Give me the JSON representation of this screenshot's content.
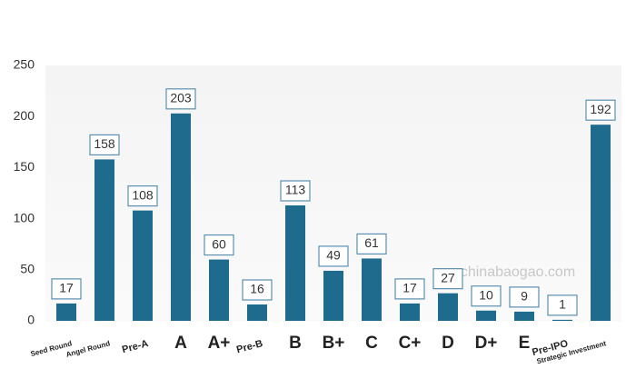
{
  "chart_data": {
    "type": "bar",
    "categories": [
      "Seed Round",
      "Angel Round",
      "Pre-A",
      "A",
      "A+",
      "Pre-B",
      "B",
      "B+",
      "C",
      "C+",
      "D",
      "D+",
      "E",
      "Pre-IPO",
      "Strategic Investment"
    ],
    "values": [
      17,
      158,
      108,
      203,
      60,
      16,
      113,
      49,
      61,
      17,
      27,
      10,
      9,
      1,
      192
    ],
    "color": "#1f6b8e",
    "ylim": [
      0,
      250
    ],
    "yticks": [
      0,
      50,
      100,
      150,
      200,
      250
    ],
    "grid": false,
    "watermark": "chinabaogao.com"
  }
}
